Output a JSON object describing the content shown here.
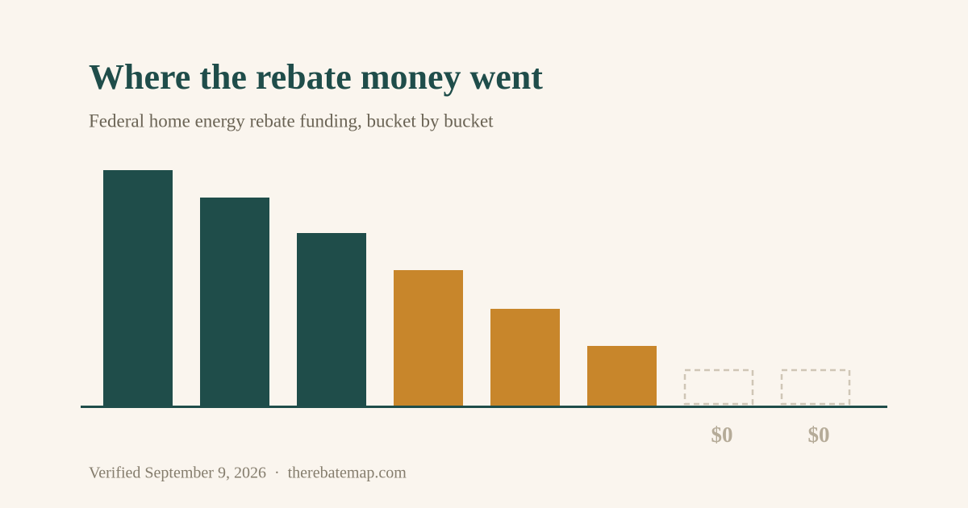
{
  "chart_data": {
    "type": "bar",
    "title": "Where the rebate money went",
    "subtitle": "Federal home energy rebate funding, bucket by bucket",
    "footer": "Verified September 9, 2026  ·  therebatemap.com",
    "categories": [
      null,
      null,
      null,
      null,
      null,
      null,
      null,
      null
    ],
    "values": [
      292,
      258,
      214,
      168,
      120,
      74,
      0,
      0
    ],
    "value_labels": [
      null,
      null,
      null,
      null,
      null,
      null,
      "$0",
      "$0"
    ],
    "colors": [
      "#1f4d4a",
      "#1f4d4a",
      "#1f4d4a",
      "#c8862b",
      "#c8862b",
      "#c8862b",
      "#1f4d4a",
      "#1f4d4a"
    ],
    "ylim": [
      0,
      292
    ],
    "grid": false
  }
}
